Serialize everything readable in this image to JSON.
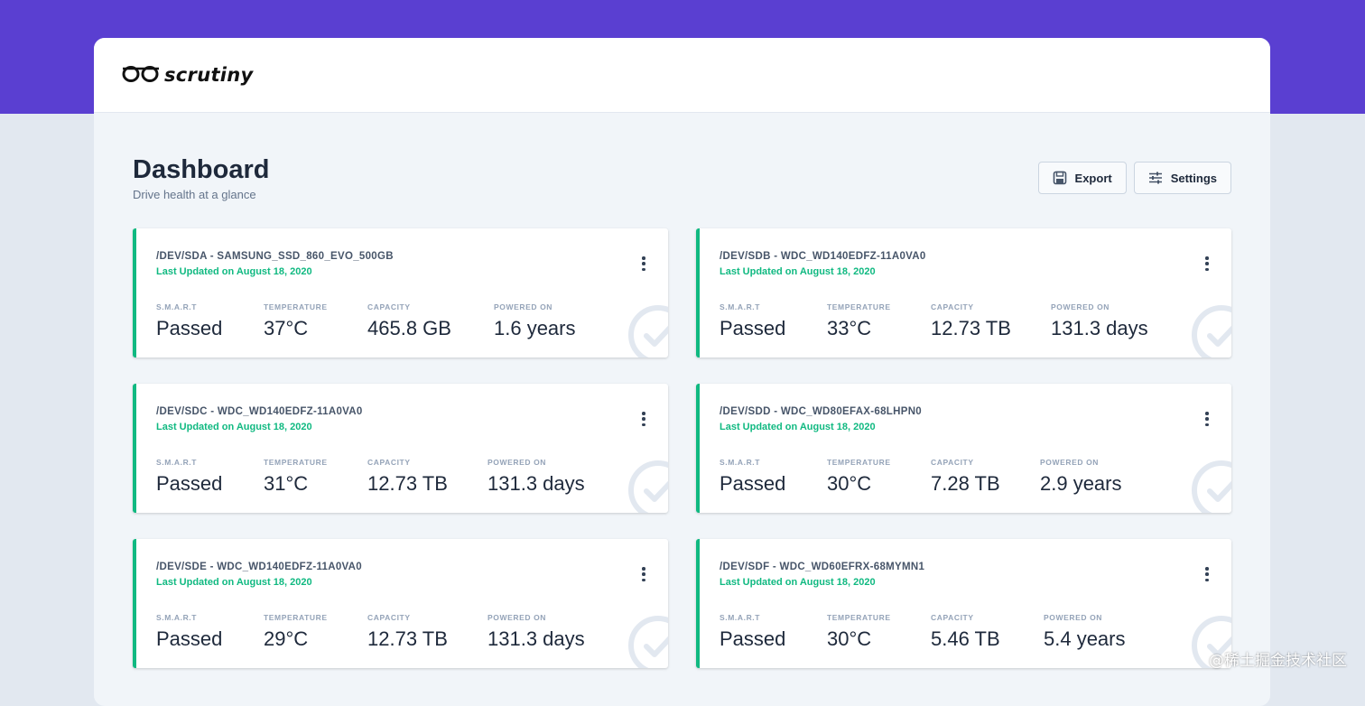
{
  "app": {
    "name": "scrutiny",
    "logo_icon": "glasses-icon"
  },
  "page": {
    "title": "Dashboard",
    "subtitle": "Drive health at a glance"
  },
  "toolbar": {
    "export_label": "Export",
    "export_icon": "floppy-disk-icon",
    "settings_label": "Settings",
    "settings_icon": "sliders-icon"
  },
  "stat_labels": {
    "smart": "S.M.A.R.T",
    "temperature": "TEMPERATURE",
    "capacity": "CAPACITY",
    "powered_on": "POWERED ON"
  },
  "colors": {
    "accent": "#5a3fd1",
    "status_ok": "#10b981"
  },
  "devices": [
    {
      "title": "/DEV/SDA - SAMSUNG_SSD_860_EVO_500GB",
      "updated": "Last Updated on August 18, 2020",
      "smart": "Passed",
      "temperature": "37°C",
      "capacity": "465.8 GB",
      "powered_on": "1.6 years"
    },
    {
      "title": "/DEV/SDB - WDC_WD140EDFZ-11A0VA0",
      "updated": "Last Updated on August 18, 2020",
      "smart": "Passed",
      "temperature": "33°C",
      "capacity": "12.73 TB",
      "powered_on": "131.3 days"
    },
    {
      "title": "/DEV/SDC - WDC_WD140EDFZ-11A0VA0",
      "updated": "Last Updated on August 18, 2020",
      "smart": "Passed",
      "temperature": "31°C",
      "capacity": "12.73 TB",
      "powered_on": "131.3 days"
    },
    {
      "title": "/DEV/SDD - WDC_WD80EFAX-68LHPN0",
      "updated": "Last Updated on August 18, 2020",
      "smart": "Passed",
      "temperature": "30°C",
      "capacity": "7.28 TB",
      "powered_on": "2.9 years"
    },
    {
      "title": "/DEV/SDE - WDC_WD140EDFZ-11A0VA0",
      "updated": "Last Updated on August 18, 2020",
      "smart": "Passed",
      "temperature": "29°C",
      "capacity": "12.73 TB",
      "powered_on": "131.3 days"
    },
    {
      "title": "/DEV/SDF - WDC_WD60EFRX-68MYMN1",
      "updated": "Last Updated on August 18, 2020",
      "smart": "Passed",
      "temperature": "30°C",
      "capacity": "5.46 TB",
      "powered_on": "5.4 years"
    }
  ],
  "watermark": "@稀土掘金技术社区"
}
